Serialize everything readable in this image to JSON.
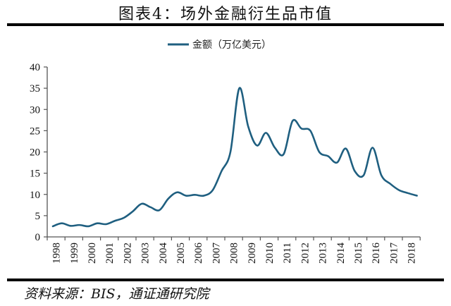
{
  "title": "图表4：场外金融衍生品市值",
  "source": "资料来源：BIS，通证通研究院",
  "colors": {
    "line": "#1f5f80",
    "axis": "#555555"
  },
  "chart_data": {
    "type": "line",
    "title": "图表4：场外金融衍生品市值",
    "xlabel": "",
    "ylabel": "",
    "ylim": [
      0,
      40
    ],
    "yticks": [
      0,
      5,
      10,
      15,
      20,
      25,
      30,
      35,
      40
    ],
    "categories": [
      "1998",
      "1999",
      "2000",
      "2001",
      "2002",
      "2003",
      "2004",
      "2005",
      "2006",
      "2007",
      "2008",
      "2009",
      "2010",
      "2011",
      "2012",
      "2013",
      "2014",
      "2015",
      "2016",
      "2017",
      "2018"
    ],
    "legend": {
      "position": "top",
      "entries": [
        "金额（万亿美元）"
      ]
    },
    "grid": false,
    "series": [
      {
        "name": "金额（万亿美元）",
        "x": [
          1998.0,
          1998.5,
          1999.0,
          1999.5,
          2000.0,
          2000.5,
          2001.0,
          2001.5,
          2002.0,
          2002.5,
          2003.0,
          2003.5,
          2004.0,
          2004.5,
          2005.0,
          2005.5,
          2006.0,
          2006.5,
          2007.0,
          2007.5,
          2008.0,
          2008.5,
          2009.0,
          2009.5,
          2010.0,
          2010.5,
          2011.0,
          2011.5,
          2012.0,
          2012.5,
          2013.0,
          2013.5,
          2014.0,
          2014.5,
          2015.0,
          2015.5,
          2016.0,
          2016.5,
          2017.0,
          2017.5,
          2018.0,
          2018.5
        ],
        "values": [
          2.5,
          3.2,
          2.6,
          2.8,
          2.5,
          3.2,
          3.0,
          3.8,
          4.5,
          6.0,
          7.8,
          7.0,
          6.3,
          9.0,
          10.5,
          9.7,
          9.9,
          9.7,
          11.0,
          15.5,
          20.0,
          35.0,
          26.0,
          21.5,
          24.5,
          21.0,
          19.5,
          27.3,
          25.5,
          25.0,
          20.0,
          19.0,
          17.5,
          20.8,
          15.5,
          14.5,
          21.0,
          14.5,
          12.5,
          11.0,
          10.3,
          9.7
        ]
      }
    ]
  }
}
